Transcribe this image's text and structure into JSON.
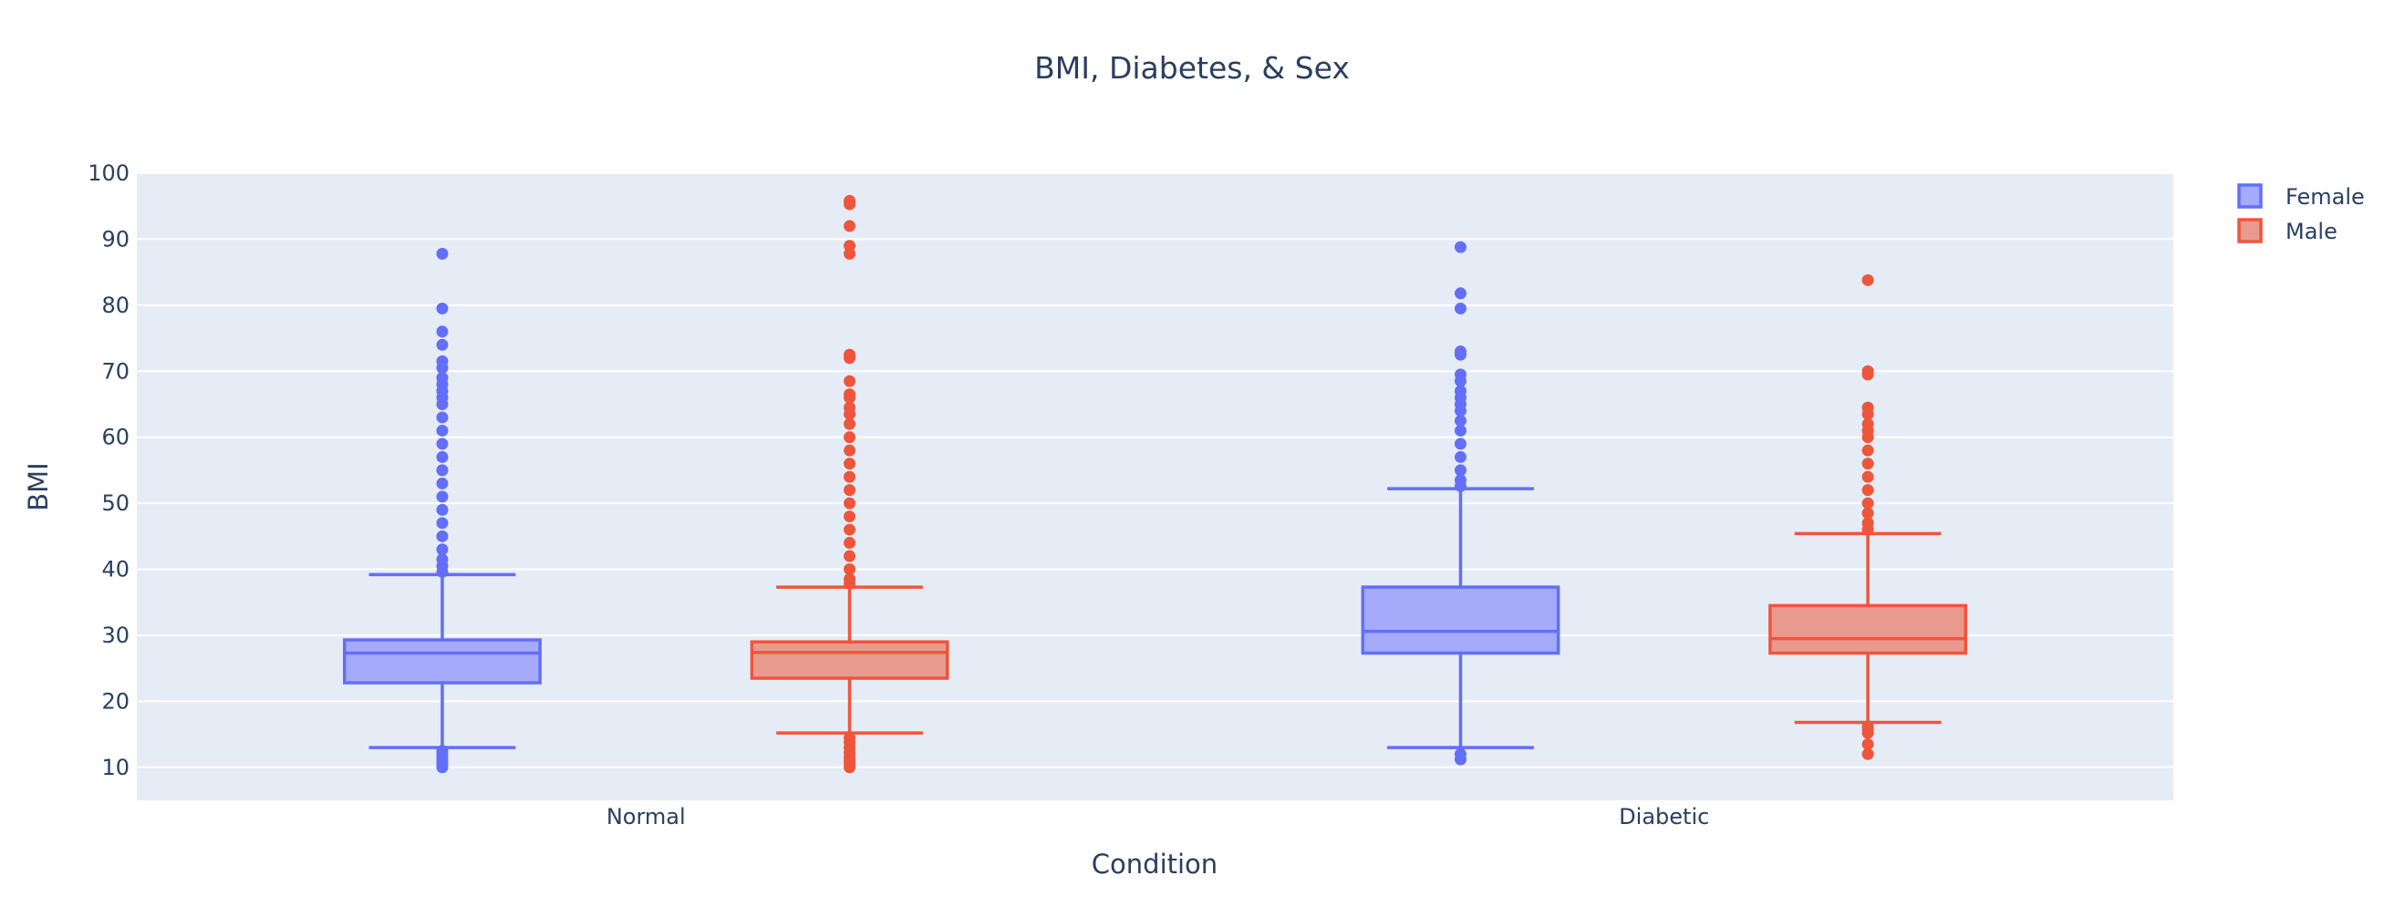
{
  "chart_data": {
    "type": "box",
    "title": "BMI, Diabetes, & Sex",
    "xlabel": "Condition",
    "ylabel": "BMI",
    "categories": [
      "Normal",
      "Diabetic"
    ],
    "ylim": [
      5,
      100
    ],
    "yticks": [
      10,
      20,
      30,
      40,
      50,
      60,
      70,
      80,
      90,
      100
    ],
    "grid": true,
    "legend_position": "top-right",
    "series": [
      {
        "name": "Female",
        "color": "#636efa",
        "fill": "#a5abfa",
        "boxes": [
          {
            "category": "Normal",
            "min": 13,
            "q1": 22.8,
            "median": 27.3,
            "q3": 29.3,
            "max": 39.2,
            "outliers_low": [
              10.0,
              10.3,
              10.6,
              11.0,
              11.5,
              12.0,
              12.5
            ],
            "outliers_high": [
              39.6,
              40.5,
              41.5,
              43,
              45,
              47,
              49,
              51,
              53,
              55,
              57,
              59,
              61,
              63,
              65,
              66,
              67,
              68,
              69,
              70.5,
              71.5,
              74,
              76,
              79.5,
              87.8
            ]
          },
          {
            "category": "Diabetic",
            "min": 13,
            "q1": 27.3,
            "median": 30.6,
            "q3": 37.3,
            "max": 52.2,
            "outliers_low": [
              11.2,
              12.0
            ],
            "outliers_high": [
              52.6,
              53.5,
              55,
              57,
              59,
              61,
              62.5,
              64,
              65,
              66,
              67,
              68.5,
              69.5,
              72.5,
              73,
              79.5,
              81.8,
              88.8
            ]
          }
        ]
      },
      {
        "name": "Male",
        "color": "#ef553b",
        "fill": "#e99a8f",
        "boxes": [
          {
            "category": "Normal",
            "min": 15.2,
            "q1": 23.5,
            "median": 27.4,
            "q3": 29.0,
            "max": 37.3,
            "outliers_low": [
              10.0,
              10.5,
              11.0,
              11.5,
              12.2,
              13.0,
              13.8,
              14.5
            ],
            "outliers_high": [
              37.8,
              38.5,
              40,
              42,
              44,
              46,
              48,
              50,
              52,
              54,
              56,
              58,
              60,
              62,
              63.5,
              64.5,
              66,
              66.5,
              68.5,
              72,
              72.5,
              87.8,
              89,
              92,
              95.3,
              95.8
            ]
          },
          {
            "category": "Diabetic",
            "min": 16.8,
            "q1": 27.3,
            "median": 29.5,
            "q3": 34.5,
            "max": 45.4,
            "outliers_low": [
              12.0,
              13.5,
              15.2,
              15.8,
              16.2
            ],
            "outliers_high": [
              46,
              47,
              48.5,
              50,
              52,
              54,
              56,
              58,
              60,
              61,
              62,
              63.5,
              64.5,
              69.5,
              70,
              83.8
            ]
          }
        ]
      }
    ]
  }
}
